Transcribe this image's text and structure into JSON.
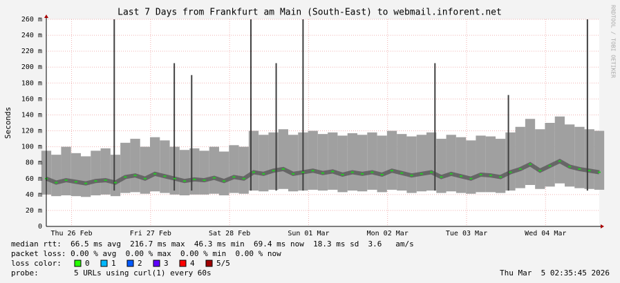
{
  "chart_data": {
    "type": "smoke",
    "title": "Last 7 Days from Frankfurt am Main (South-East) to webmail.inforent.net",
    "y_label": "Seconds",
    "side_label": "RRDTOOL / TOBI OETIKER",
    "xlim": [
      0,
      7
    ],
    "xticks": [
      {
        "value": 0.32,
        "label": "Thu 26 Feb"
      },
      {
        "value": 1.32,
        "label": "Fri 27 Feb"
      },
      {
        "value": 2.32,
        "label": "Sat 28 Feb"
      },
      {
        "value": 3.32,
        "label": "Sun 01 Mar"
      },
      {
        "value": 4.32,
        "label": "Mon 02 Mar"
      },
      {
        "value": 5.32,
        "label": "Tue 03 Mar"
      },
      {
        "value": 6.32,
        "label": "Wed 04 Mar"
      }
    ],
    "ylim": [
      0,
      260
    ],
    "yticks": [
      {
        "value": 0,
        "label": "0"
      },
      {
        "value": 20,
        "label": "20 m"
      },
      {
        "value": 40,
        "label": "40 m"
      },
      {
        "value": 60,
        "label": "60 m"
      },
      {
        "value": 80,
        "label": "80 m"
      },
      {
        "value": 100,
        "label": "100 m"
      },
      {
        "value": 120,
        "label": "120 m"
      },
      {
        "value": 140,
        "label": "140 m"
      },
      {
        "value": 160,
        "label": "160 m"
      },
      {
        "value": 180,
        "label": "180 m"
      },
      {
        "value": 200,
        "label": "200 m"
      },
      {
        "value": 220,
        "label": "220 m"
      },
      {
        "value": 240,
        "label": "240 m"
      },
      {
        "value": 260,
        "label": "260 m"
      }
    ],
    "grid": true,
    "x": [
      0,
      0.125,
      0.25,
      0.375,
      0.5,
      0.625,
      0.75,
      0.875,
      1,
      1.125,
      1.25,
      1.375,
      1.5,
      1.625,
      1.75,
      1.875,
      2,
      2.125,
      2.25,
      2.375,
      2.5,
      2.625,
      2.75,
      2.875,
      3,
      3.125,
      3.25,
      3.375,
      3.5,
      3.625,
      3.75,
      3.875,
      4,
      4.125,
      4.25,
      4.375,
      4.5,
      4.625,
      4.75,
      4.875,
      5,
      5.125,
      5.25,
      5.375,
      5.5,
      5.625,
      5.75,
      5.875,
      6,
      6.125,
      6.25,
      6.375,
      6.5,
      6.625,
      6.75,
      6.875,
      7
    ],
    "median": [
      60,
      55,
      58,
      56,
      54,
      57,
      58,
      55,
      62,
      64,
      60,
      66,
      63,
      60,
      57,
      59,
      58,
      61,
      57,
      62,
      60,
      68,
      66,
      70,
      72,
      66,
      68,
      70,
      67,
      69,
      65,
      68,
      66,
      68,
      65,
      70,
      67,
      64,
      66,
      68,
      62,
      66,
      63,
      60,
      65,
      64,
      62,
      68,
      72,
      78,
      70,
      76,
      82,
      75,
      72,
      70,
      68
    ],
    "low": [
      40,
      38,
      39,
      38,
      37,
      39,
      40,
      38,
      42,
      43,
      41,
      44,
      42,
      40,
      39,
      40,
      40,
      41,
      39,
      42,
      41,
      45,
      44,
      46,
      47,
      44,
      45,
      46,
      45,
      46,
      43,
      45,
      44,
      46,
      43,
      46,
      45,
      42,
      44,
      45,
      42,
      44,
      42,
      41,
      43,
      43,
      42,
      45,
      48,
      52,
      47,
      50,
      54,
      50,
      48,
      47,
      46
    ],
    "high": [
      95,
      90,
      100,
      92,
      88,
      95,
      98,
      90,
      105,
      110,
      100,
      112,
      108,
      100,
      96,
      98,
      95,
      100,
      94,
      102,
      100,
      120,
      115,
      118,
      122,
      115,
      118,
      120,
      116,
      118,
      114,
      117,
      115,
      118,
      114,
      120,
      116,
      113,
      115,
      118,
      110,
      115,
      112,
      108,
      114,
      113,
      110,
      118,
      125,
      135,
      122,
      130,
      138,
      128,
      125,
      122,
      120
    ],
    "median_color": "#22cc22",
    "smoke_color": "#a0a0a0",
    "line_color": "#404040",
    "spikes": {
      "x": [
        0.86,
        1.62,
        1.84,
        2.59,
        2.91,
        3.25,
        4.92,
        5.85,
        6.85
      ],
      "values": [
        260,
        205,
        190,
        260,
        205,
        260,
        205,
        165,
        260
      ]
    },
    "stats": [
      "median rtt:  66.5 ms avg  216.7 ms max  46.3 ms min  69.4 ms now  18.3 ms sd  3.6   am/s",
      "packet loss: 0.00 % avg  0.00 % max  0.00 % min  0.00 % now"
    ],
    "loss_label": "loss color:",
    "loss_colors": [
      {
        "label": "0",
        "color": "#26ff00"
      },
      {
        "label": "1",
        "color": "#00b8ff"
      },
      {
        "label": "2",
        "color": "#0059ff"
      },
      {
        "label": "3",
        "color": "#5e00ff"
      },
      {
        "label": "4",
        "color": "#ff0000"
      },
      {
        "label": "5/5",
        "color": "#a10000"
      }
    ],
    "probe_label": "probe:",
    "probe_text": "5 URLs using curl(1) every 60s",
    "timestamp": "Thu Mar  5 02:35:45 2026"
  }
}
